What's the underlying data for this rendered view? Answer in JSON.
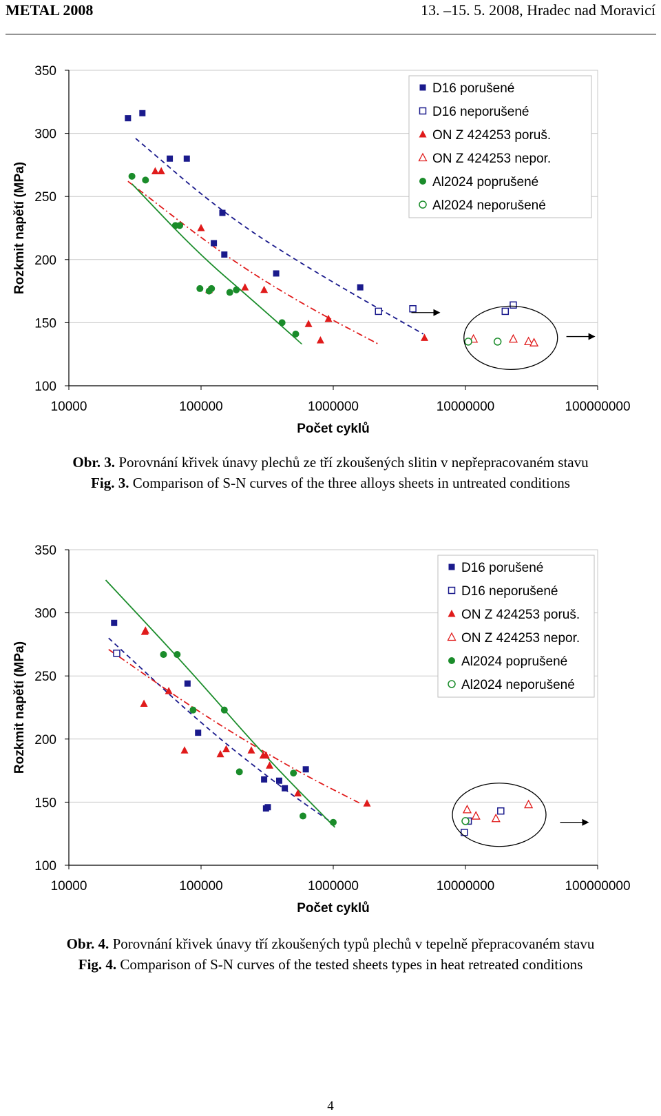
{
  "header": {
    "left": "METAL 2008",
    "right": "13. –15. 5. 2008, Hradec nad Moravicí"
  },
  "colors": {
    "d16": "#1a1a8c",
    "onz": "#e01b1b",
    "al": "#1a8c2a"
  },
  "legend": [
    {
      "label": "D16 porušené",
      "series": "d16",
      "filled": true,
      "marker": "square"
    },
    {
      "label": "D16 neporušené",
      "series": "d16",
      "filled": false,
      "marker": "square"
    },
    {
      "label": "ON Z 424253 poruš.",
      "series": "onz",
      "filled": true,
      "marker": "triangle"
    },
    {
      "label": "ON Z 424253 nepor.",
      "series": "onz",
      "filled": false,
      "marker": "triangle"
    },
    {
      "label": "Al2024 poprušené",
      "series": "al",
      "filled": true,
      "marker": "circle"
    },
    {
      "label": "Al2024 neporušené",
      "series": "al",
      "filled": false,
      "marker": "circle"
    }
  ],
  "chart_data": [
    {
      "type": "scatter",
      "figure": "Obr. 3",
      "title": "",
      "xlabel": "Počet cyklů",
      "ylabel": "Rozkmit napětí   (MPa)",
      "xscale": "log",
      "xlim": [
        10000,
        100000000
      ],
      "ylim": [
        100,
        350
      ],
      "xticks": [
        "10000",
        "100000",
        "1000000",
        "10000000",
        "100000000"
      ],
      "yticks": [
        "100",
        "150",
        "200",
        "250",
        "300",
        "350"
      ],
      "legend_position": "top-right",
      "series": [
        {
          "key": "d16_f",
          "name": "D16 porušené",
          "color_key": "d16",
          "marker": "square",
          "filled": true,
          "x": [
            28000,
            36000,
            58000,
            78000,
            125000,
            145000,
            150000,
            370000,
            1600000
          ],
          "y": [
            312,
            316,
            280,
            280,
            213,
            237,
            204,
            189,
            178
          ]
        },
        {
          "key": "d16_o",
          "name": "D16 neporušené",
          "color_key": "d16",
          "marker": "square",
          "filled": false,
          "x": [
            2200000,
            4000000,
            20000000,
            23000000
          ],
          "y": [
            159,
            161,
            159,
            164
          ]
        },
        {
          "key": "onz_f",
          "name": "ON Z 424253 poruš.",
          "color_key": "onz",
          "marker": "triangle",
          "filled": true,
          "x": [
            45000,
            50000,
            100000,
            115000,
            215000,
            300000,
            650000,
            800000,
            920000,
            4900000
          ],
          "y": [
            270,
            270,
            225,
            176,
            178,
            176,
            149,
            136,
            153,
            138
          ]
        },
        {
          "key": "onz_o",
          "name": "ON Z 424253 nepor.",
          "color_key": "onz",
          "marker": "triangle",
          "filled": false,
          "x": [
            11500000,
            23000000,
            30000000,
            33000000
          ],
          "y": [
            137,
            137,
            135,
            134
          ]
        },
        {
          "key": "al_f",
          "name": "Al2024 poprušené",
          "color_key": "al",
          "marker": "circle",
          "filled": true,
          "x": [
            30000,
            38000,
            64000,
            69000,
            98000,
            115000,
            120000,
            165000,
            185000,
            410000,
            520000
          ],
          "y": [
            266,
            263,
            227,
            227,
            177,
            175,
            177,
            174,
            176,
            150,
            141
          ]
        },
        {
          "key": "al_o",
          "name": "Al2024 neporušené",
          "color_key": "al",
          "marker": "circle",
          "filled": false,
          "x": [
            10500000,
            17500000
          ],
          "y": [
            135,
            135
          ]
        }
      ],
      "trendlines": [
        {
          "color_key": "d16",
          "style": "dashed",
          "x": [
            32000,
            150000,
            700000,
            4800000
          ],
          "y": [
            296,
            236,
            191,
            141
          ]
        },
        {
          "color_key": "onz",
          "style": "dashdot",
          "x": [
            28000,
            150000,
            600000,
            2200000
          ],
          "y": [
            262,
            203,
            164,
            133
          ]
        },
        {
          "color_key": "al",
          "style": "solid",
          "x": [
            30000,
            95000,
            250000,
            580000
          ],
          "y": [
            260,
            205,
            167,
            133
          ]
        }
      ],
      "annotations": {
        "ellipse_center_x": 22000000,
        "ellipse_center_y": 138,
        "arrows_right": [
          {
            "x": 3900000,
            "y": 158
          },
          {
            "x": 58000000,
            "y": 139
          }
        ]
      }
    },
    {
      "type": "scatter",
      "figure": "Obr. 4",
      "title": "",
      "xlabel": "Počet cyklů",
      "ylabel": "Rozkmit napětí   (MPa)",
      "xscale": "log",
      "xlim": [
        10000,
        100000000
      ],
      "ylim": [
        100,
        350
      ],
      "xticks": [
        "10000",
        "100000",
        "1000000",
        "10000000",
        "100000000"
      ],
      "yticks": [
        "100",
        "150",
        "200",
        "250",
        "300",
        "350"
      ],
      "legend_position": "top-right",
      "series": [
        {
          "key": "d16_f",
          "name": "D16 porušené",
          "color_key": "d16",
          "marker": "square",
          "filled": true,
          "x": [
            22000,
            79000,
            95000,
            300000,
            310000,
            320000,
            390000,
            430000,
            620000
          ],
          "y": [
            292,
            244,
            205,
            168,
            145,
            146,
            167,
            161,
            176
          ]
        },
        {
          "key": "d16_o",
          "name": "D16 neporušené",
          "color_key": "d16",
          "marker": "square",
          "filled": false,
          "x": [
            23000,
            9800000,
            10500000,
            18500000
          ],
          "y": [
            268,
            126,
            135,
            143
          ]
        },
        {
          "key": "onz_f",
          "name": "ON Z 424253 poruš.",
          "color_key": "onz",
          "marker": "triangle",
          "filled": true,
          "x": [
            37000,
            38000,
            37500,
            57000,
            75000,
            140000,
            155000,
            240000,
            295000,
            310000,
            330000,
            540000,
            1800000
          ],
          "y": [
            228,
            286,
            285,
            238,
            191,
            188,
            192,
            191,
            187,
            187,
            179,
            157,
            149
          ]
        },
        {
          "key": "onz_o",
          "name": "ON Z 424253 nepor.",
          "color_key": "onz",
          "marker": "triangle",
          "filled": false,
          "x": [
            10300000,
            12000000,
            17000000,
            30000000
          ],
          "y": [
            144,
            139,
            137,
            148
          ]
        },
        {
          "key": "al_f",
          "name": "Al2024 poprušené",
          "color_key": "al",
          "marker": "circle",
          "filled": true,
          "x": [
            52000,
            66000,
            87000,
            150000,
            195000,
            500000,
            590000,
            1000000
          ],
          "y": [
            267,
            267,
            223,
            223,
            174,
            173,
            139,
            134
          ]
        },
        {
          "key": "al_o",
          "name": "Al2024 neporušené",
          "color_key": "al",
          "marker": "circle",
          "filled": false,
          "x": [
            10000000
          ],
          "y": [
            135
          ]
        }
      ],
      "trendlines": [
        {
          "color_key": "d16",
          "style": "dashed",
          "x": [
            20000,
            100000,
            400000,
            1000000
          ],
          "y": [
            280,
            212,
            162,
            133
          ]
        },
        {
          "color_key": "onz",
          "style": "dashdot",
          "x": [
            20000,
            100000,
            500000,
            1600000
          ],
          "y": [
            271,
            220,
            176,
            149
          ]
        },
        {
          "color_key": "al",
          "style": "solid",
          "x": [
            19000,
            80000,
            300000,
            1030000
          ],
          "y": [
            326,
            256,
            187,
            130
          ]
        }
      ],
      "annotations": {
        "ellipse_center_x": 18000000,
        "ellipse_center_y": 140,
        "arrows_right": [
          {
            "x": 52000000,
            "y": 134
          }
        ]
      }
    }
  ],
  "captions": [
    {
      "cz_label": "Obr. 3.",
      "cz_text": " Porovnání křivek únavy plechů ze tří zkoušených slitin v nepřepracovaném stavu",
      "en_label": "Fig. 3.",
      "en_text": " Comparison of S-N curves of the three alloys sheets in untreated conditions"
    },
    {
      "cz_label": "Obr. 4.",
      "cz_text": " Porovnání křivek únavy tří zkoušených typů plechů v tepelně přepracovaném stavu",
      "en_label": "Fig. 4.",
      "en_text": " Comparison of S-N curves of the tested sheets types in heat retreated conditions"
    }
  ],
  "page_number": "4"
}
